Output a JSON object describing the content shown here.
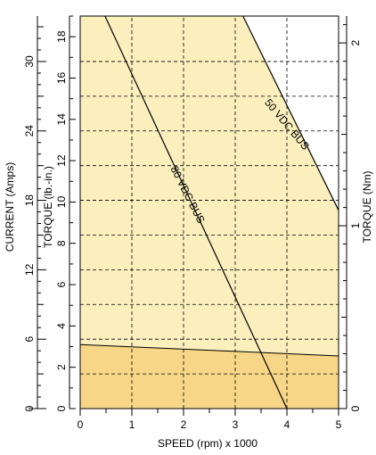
{
  "chart_data": {
    "type": "line",
    "xlabel": "SPEED (rpm) x 1000",
    "ylabel_torque_lbin": "TORQUE (lb.-in.)",
    "ylabel_current": "CURRENT (Amps)",
    "ylabel_torque_nm": "TORQUE (Nm)",
    "xlim": [
      0,
      5
    ],
    "ylim": [
      0,
      19
    ],
    "x_ticks": [
      "0",
      "1",
      "2",
      "3",
      "4",
      "5"
    ],
    "y_ticks_torque_lbin": [
      "0",
      "2",
      "4",
      "6",
      "8",
      "10",
      "12",
      "14",
      "16",
      "18"
    ],
    "y_ticks_current": [
      "0",
      "6",
      "12",
      "18",
      "24",
      "30"
    ],
    "y_ticks_torque_nm": [
      "0",
      "1",
      "2"
    ],
    "grid": true,
    "series": [
      {
        "name": "80 VDC BUS",
        "x": [
          0.48,
          4.0
        ],
        "y": [
          19.0,
          0.0
        ]
      },
      {
        "name": "50 VDC BUS",
        "x": [
          3.15,
          5.0
        ],
        "y": [
          19.0,
          9.6
        ]
      }
    ],
    "regions": {
      "continuous_band": {
        "x": [
          0,
          5
        ],
        "y_top": [
          3.1,
          2.55
        ]
      },
      "intermittent_band_top": 19
    },
    "colors": {
      "continuous": "#f7d787",
      "intermittent": "#fbefbd",
      "line": "#000000"
    }
  }
}
